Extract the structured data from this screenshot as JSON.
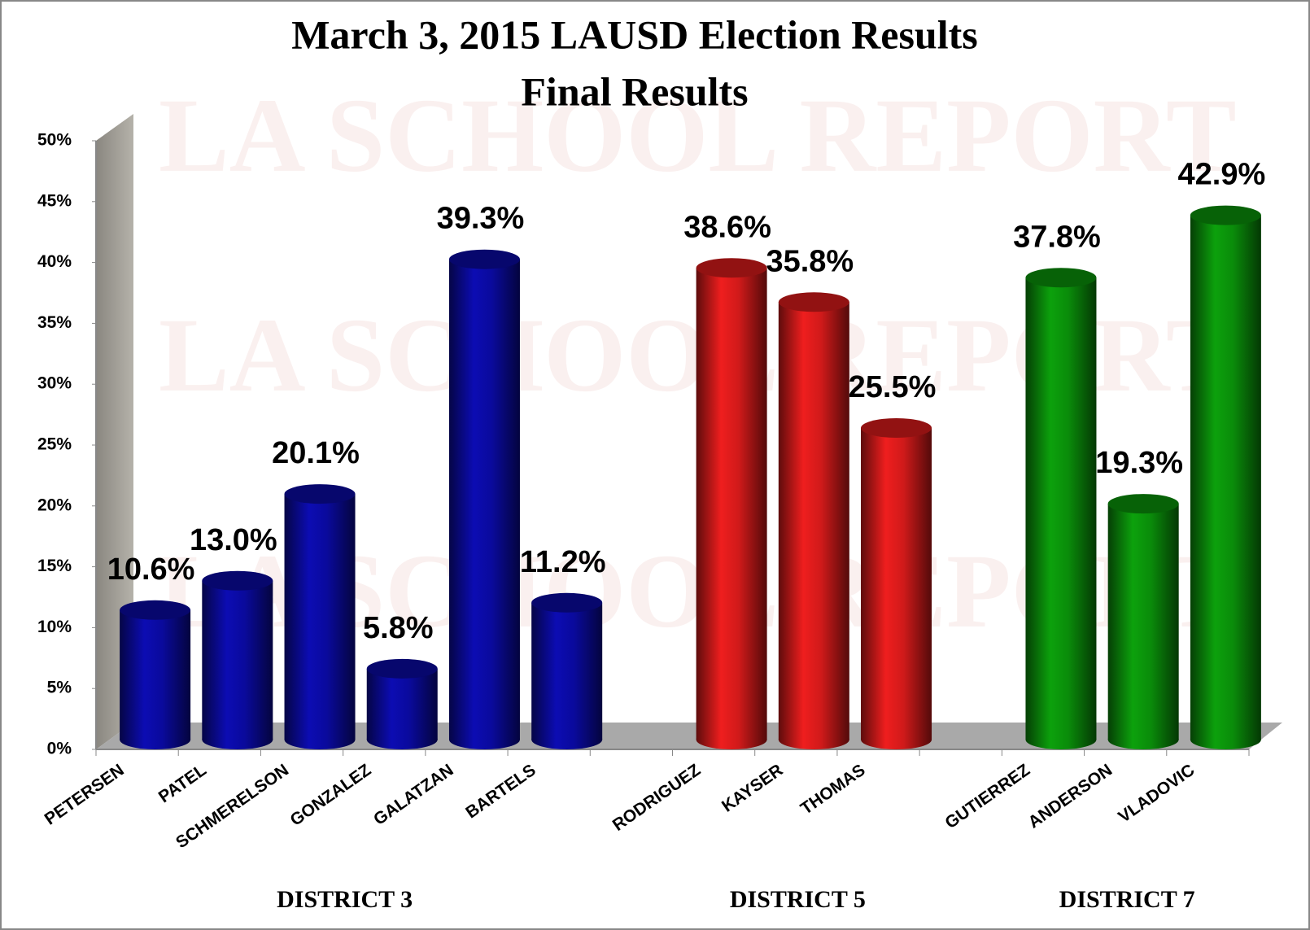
{
  "chart_data": {
    "type": "bar",
    "title": "March 3, 2015  LAUSD Election Results",
    "subtitle": "Final Results",
    "watermark": "LA SCHOOL REPORT",
    "categories": [
      "PETERSEN",
      "PATEL",
      "SCHMERELSON",
      "GONZALEZ",
      "GALATZAN",
      "BARTELS",
      null,
      "RODRIGUEZ",
      "KAYSER",
      "THOMAS",
      null,
      "GUTIERREZ",
      "ANDERSON",
      "VLADOVIC"
    ],
    "series": [
      {
        "name": "DISTRICT 3",
        "color": "#0a0a9c",
        "values": [
          10.6,
          13.0,
          20.1,
          5.8,
          39.3,
          11.2,
          null,
          null,
          null,
          null,
          null,
          null,
          null,
          null
        ],
        "value_labels": [
          "10.6%",
          "13.0%",
          "20.1%",
          "5.8%",
          "39.3%",
          "11.2%",
          null,
          null,
          null,
          null,
          null,
          null,
          null,
          null
        ]
      },
      {
        "name": "DISTRICT 5",
        "color": "#d01a1a",
        "values": [
          null,
          null,
          null,
          null,
          null,
          null,
          null,
          38.6,
          35.8,
          25.5,
          null,
          null,
          null,
          null
        ],
        "value_labels": [
          null,
          null,
          null,
          null,
          null,
          null,
          null,
          "38.6%",
          "35.8%",
          "25.5%",
          null,
          null,
          null,
          null
        ]
      },
      {
        "name": "DISTRICT 7",
        "color": "#0a8c0a",
        "values": [
          null,
          null,
          null,
          null,
          null,
          null,
          null,
          null,
          null,
          null,
          null,
          37.8,
          19.3,
          42.9
        ],
        "value_labels": [
          null,
          null,
          null,
          null,
          null,
          null,
          null,
          null,
          null,
          null,
          null,
          "37.8%",
          "19.3%",
          "42.9%"
        ]
      }
    ],
    "ylim": [
      0,
      50
    ],
    "yticks": [
      {
        "value": 0,
        "label": "0%"
      },
      {
        "value": 5,
        "label": "5%"
      },
      {
        "value": 10,
        "label": "10%"
      },
      {
        "value": 15,
        "label": "15%"
      },
      {
        "value": 20,
        "label": "20%"
      },
      {
        "value": 25,
        "label": "25%"
      },
      {
        "value": 30,
        "label": "30%"
      },
      {
        "value": 35,
        "label": "35%"
      },
      {
        "value": 40,
        "label": "40%"
      },
      {
        "value": 45,
        "label": "45%"
      },
      {
        "value": 50,
        "label": "50%"
      }
    ]
  }
}
